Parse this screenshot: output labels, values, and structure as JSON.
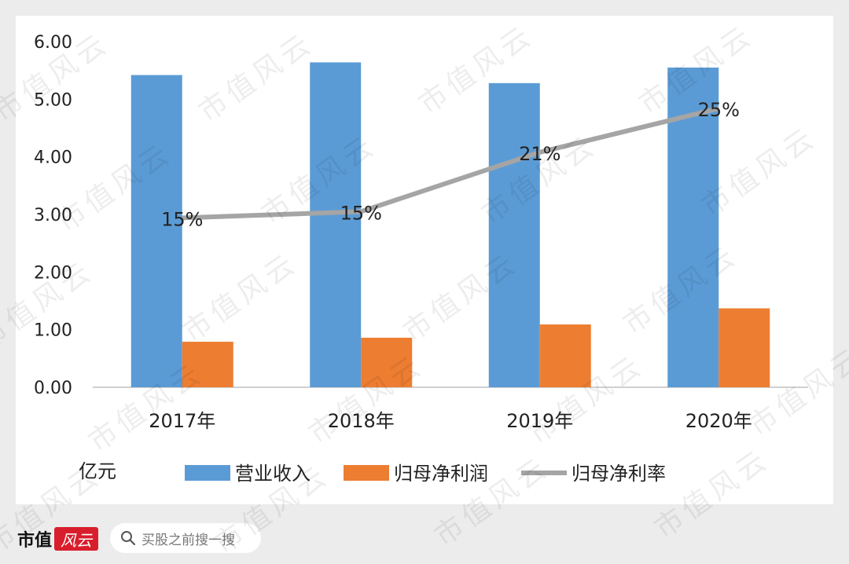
{
  "chart_data": {
    "type": "bar",
    "categories": [
      "2017年",
      "2018年",
      "2019年",
      "2020年"
    ],
    "series": [
      {
        "name": "营业收入",
        "type": "bar",
        "color": "#5b9bd5",
        "values": [
          5.42,
          5.64,
          5.28,
          5.55
        ]
      },
      {
        "name": "归母净利润",
        "type": "bar",
        "color": "#ed7d31",
        "values": [
          0.79,
          0.86,
          1.09,
          1.37
        ]
      },
      {
        "name": "归母净利率",
        "type": "line",
        "color": "#a5a5a5",
        "values": [
          2.94,
          3.05,
          4.08,
          4.84
        ],
        "labels": [
          "15%",
          "15%",
          "21%",
          "25%"
        ]
      }
    ],
    "ylabel": "亿元",
    "ylim": [
      0,
      6
    ],
    "yticks": [
      "0.00",
      "1.00",
      "2.00",
      "3.00",
      "4.00",
      "5.00",
      "6.00"
    ],
    "grid": false,
    "legend": "bottom"
  },
  "footer": {
    "brand_text": "市值",
    "brand_badge": "风云",
    "search_placeholder": "买股之前搜一搜"
  },
  "watermark": "市值风云"
}
